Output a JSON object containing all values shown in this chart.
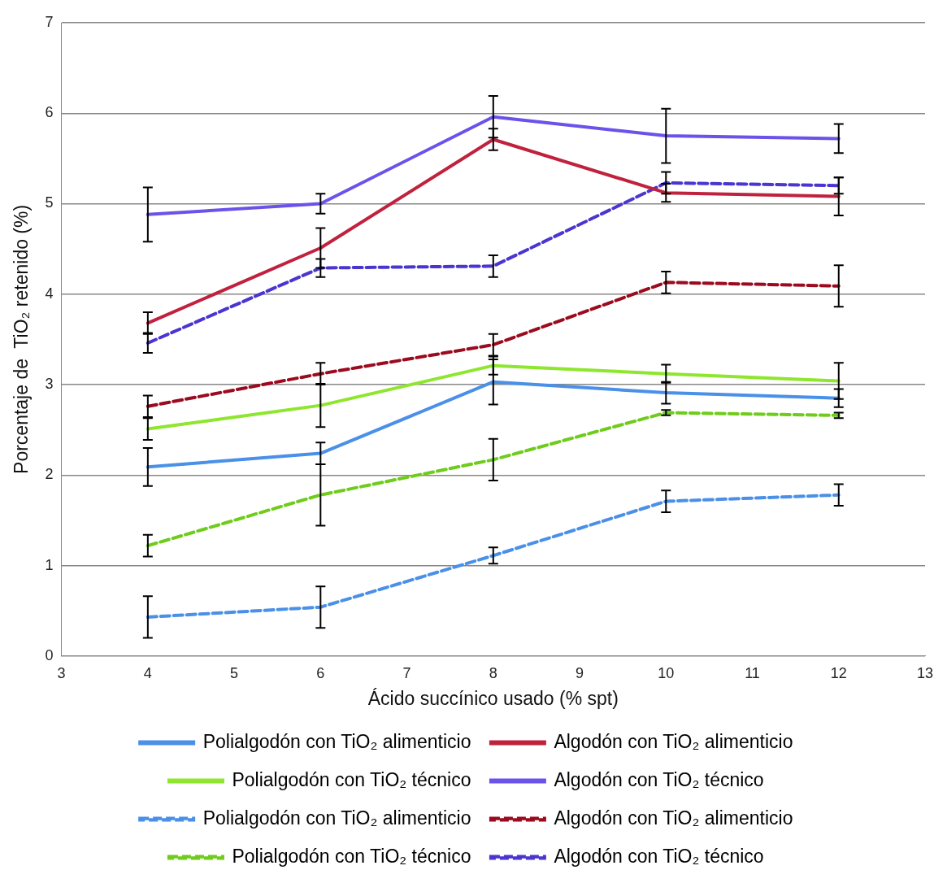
{
  "chart_data": {
    "type": "line",
    "xlabel": "Ácido succínico usado (% spt)",
    "ylabel": "Porcentaje de  TiO₂ retenido (%)",
    "x": [
      4,
      6,
      8,
      10,
      12
    ],
    "xlim": [
      3,
      13
    ],
    "xticks": [
      3,
      4,
      5,
      6,
      7,
      8,
      9,
      10,
      11,
      12,
      13
    ],
    "ylim": [
      0,
      7
    ],
    "yticks": [
      0,
      1,
      2,
      3,
      4,
      5,
      6,
      7
    ],
    "grid": "y",
    "legend": "bottom",
    "series": [
      {
        "name": "Polialgodón con TiO₂ alimenticio",
        "color": "#4a90e8",
        "line_style": "solid",
        "values": [
          2.09,
          2.24,
          3.03,
          2.91,
          2.85
        ],
        "errors": [
          0.21,
          0.12,
          0.25,
          0.12,
          0.1
        ]
      },
      {
        "name": "Algodón con TiO₂ alimenticio",
        "color": "#c0223e",
        "line_style": "solid",
        "values": [
          3.68,
          4.51,
          5.71,
          5.12,
          5.08
        ],
        "errors": [
          0.12,
          0.22,
          0.12,
          0.1,
          0.21
        ]
      },
      {
        "name": "Polialgodón con TiO₂ técnico",
        "color": "#8ee62e",
        "line_style": "solid",
        "values": [
          2.51,
          2.77,
          3.21,
          3.12,
          3.04
        ],
        "errors": [
          0.12,
          0.24,
          0.1,
          0.1,
          0.2
        ]
      },
      {
        "name": "Algodón con TiO₂ técnico",
        "color": "#6b52ea",
        "line_style": "solid",
        "values": [
          4.88,
          5.0,
          5.96,
          5.75,
          5.72
        ],
        "errors": [
          0.3,
          0.11,
          0.23,
          0.3,
          0.16
        ]
      },
      {
        "name": "Polialgodón con TiO₂ alimenticio",
        "color": "#4a90e8",
        "line_style": "dashed",
        "values": [
          0.43,
          0.54,
          1.11,
          1.71,
          1.78
        ],
        "errors": [
          0.23,
          0.23,
          0.09,
          0.12,
          0.12
        ]
      },
      {
        "name": "Algodón con TiO₂ alimenticio",
        "color": "#9b0a1e",
        "line_style": "dashed",
        "values": [
          2.76,
          3.12,
          3.44,
          4.13,
          4.09
        ],
        "errors": [
          0.12,
          0.12,
          0.12,
          0.12,
          0.23
        ]
      },
      {
        "name": "Polialgodón con TiO₂ técnico",
        "color": "#6ecc1a",
        "line_style": "dashed",
        "values": [
          1.22,
          1.78,
          2.17,
          2.69,
          2.66
        ],
        "errors": [
          0.12,
          0.34,
          0.23,
          0.03,
          0.03
        ]
      },
      {
        "name": "Algodón con TiO₂ técnico",
        "color": "#4a35d0",
        "line_style": "dashed",
        "values": [
          3.46,
          4.29,
          4.31,
          5.23,
          5.2
        ],
        "errors": [
          0.11,
          0.1,
          0.12,
          0.12,
          0.09
        ]
      }
    ]
  }
}
